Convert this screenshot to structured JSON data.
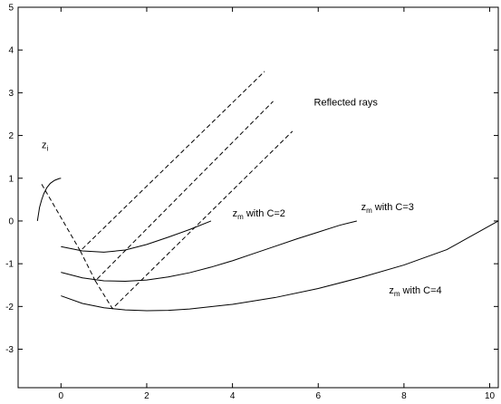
{
  "chart_data": {
    "type": "line",
    "title": "",
    "xlabel": "",
    "ylabel": "",
    "xlim": [
      -1,
      10.2
    ],
    "ylim": [
      -3.9,
      5.0
    ],
    "xticks": [
      0,
      2,
      4,
      6,
      8,
      10
    ],
    "yticks": [
      -3,
      -2,
      -1,
      0,
      1,
      2,
      3,
      4,
      5
    ],
    "grid": false,
    "legend": "none",
    "series": [
      {
        "style": "solid",
        "x": [
          -0.55,
          -0.5,
          -0.45,
          -0.4,
          -0.33,
          -0.25,
          -0.15,
          -0.05,
          0.0
        ],
        "y": [
          0.0,
          0.32,
          0.5,
          0.64,
          0.78,
          0.88,
          0.95,
          0.99,
          1.0
        ]
      },
      {
        "style": "solid",
        "x": [
          0,
          0.5,
          1.0,
          1.5,
          2.0,
          2.5,
          3.0,
          3.5
        ],
        "y": [
          -0.6,
          -0.7,
          -0.73,
          -0.68,
          -0.55,
          -0.38,
          -0.2,
          0.0
        ]
      },
      {
        "style": "solid",
        "x": [
          0,
          0.5,
          1.0,
          1.5,
          2.0,
          2.5,
          3.0,
          3.5,
          4.0,
          4.5,
          5.0,
          5.5,
          6.0,
          6.5,
          6.9
        ],
        "y": [
          -1.2,
          -1.33,
          -1.4,
          -1.41,
          -1.38,
          -1.31,
          -1.21,
          -1.08,
          -0.93,
          -0.76,
          -0.59,
          -0.42,
          -0.26,
          -0.1,
          0.0
        ]
      },
      {
        "style": "solid",
        "x": [
          0,
          0.5,
          1.0,
          1.5,
          2.0,
          2.5,
          3.0,
          4.0,
          5.0,
          6.0,
          7.0,
          8.0,
          9.0,
          10.2
        ],
        "y": [
          -1.75,
          -1.93,
          -2.03,
          -2.08,
          -2.1,
          -2.09,
          -2.06,
          -1.95,
          -1.79,
          -1.58,
          -1.32,
          -1.03,
          -0.67,
          0.0
        ]
      },
      {
        "style": "dashed",
        "x": [
          -0.45,
          0.45,
          4.75
        ],
        "y": [
          0.86,
          -0.7,
          3.5
        ]
      },
      {
        "style": "dashed",
        "x": [
          0.45,
          0.8,
          4.95
        ],
        "y": [
          -0.7,
          -1.4,
          2.8
        ]
      },
      {
        "style": "dashed",
        "x": [
          0.8,
          1.2,
          5.4
        ],
        "y": [
          -1.4,
          -2.05,
          2.1
        ]
      }
    ],
    "annotations": [
      {
        "text": "Reflected rays",
        "x": 5.9,
        "y": 2.7
      },
      {
        "text": "z",
        "sub": "i",
        "x": -0.45,
        "y": 1.7
      },
      {
        "text": "z",
        "sub": "m",
        "text2": " with C=2",
        "x": 4.0,
        "y": 0.1
      },
      {
        "text": "z",
        "sub": "m",
        "text2": " with C=3",
        "x": 7.0,
        "y": 0.25
      },
      {
        "text": "z",
        "sub": "m",
        "text2": " with C=4",
        "x": 7.65,
        "y": -1.7
      }
    ]
  }
}
